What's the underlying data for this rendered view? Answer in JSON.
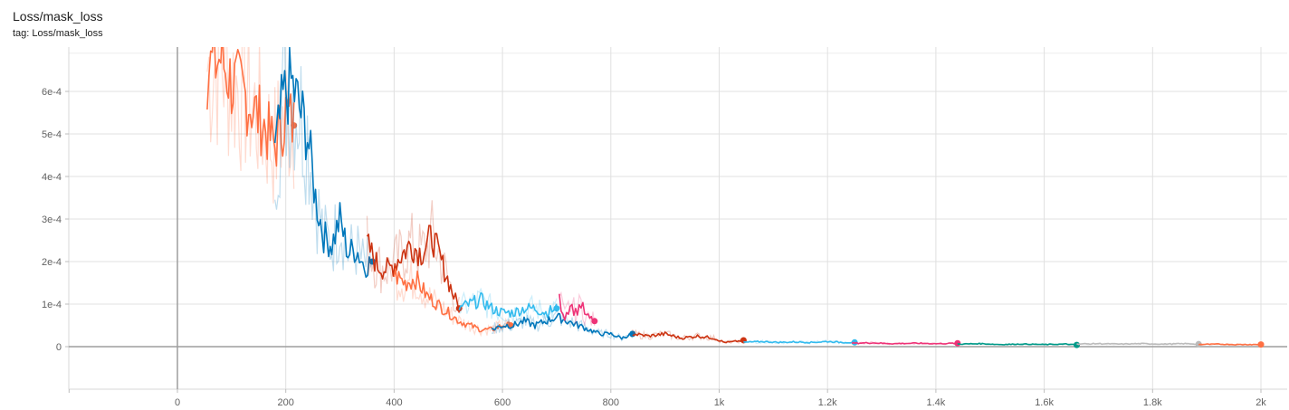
{
  "card": {
    "title": "Loss/mask_loss",
    "tag_line": "tag: Loss/mask_loss"
  },
  "chart_data": {
    "type": "line",
    "title": "Loss/mask_loss",
    "xlabel": "",
    "ylabel": "",
    "xlim": [
      -200,
      2050
    ],
    "ylim": [
      -0.0001,
      0.00069
    ],
    "x_ticks": [
      {
        "value": 0,
        "label": "0"
      },
      {
        "value": 200,
        "label": "200"
      },
      {
        "value": 400,
        "label": "400"
      },
      {
        "value": 600,
        "label": "600"
      },
      {
        "value": 800,
        "label": "800"
      },
      {
        "value": 1000,
        "label": "1k"
      },
      {
        "value": 1200,
        "label": "1.2k"
      },
      {
        "value": 1400,
        "label": "1.4k"
      },
      {
        "value": 1600,
        "label": "1.6k"
      },
      {
        "value": 1800,
        "label": "1.8k"
      },
      {
        "value": 2000,
        "label": "2k"
      }
    ],
    "y_ticks": [
      {
        "value": 0,
        "label": "0"
      },
      {
        "value": 0.0001,
        "label": "1e-4"
      },
      {
        "value": 0.0002,
        "label": "2e-4"
      },
      {
        "value": 0.0003,
        "label": "3e-4"
      },
      {
        "value": 0.0004,
        "label": "4e-4"
      },
      {
        "value": 0.0005,
        "label": "5e-4"
      },
      {
        "value": 0.0006,
        "label": "6e-4"
      }
    ],
    "grid": true,
    "legend": "none",
    "series": [
      {
        "color": "#ff7043",
        "x": [
          55,
          80,
          100,
          120,
          140,
          160,
          180,
          200,
          215
        ],
        "y": [
          0.00065,
          0.00068,
          0.00062,
          0.0006,
          0.00056,
          0.00052,
          0.00047,
          0.00055,
          0.00052
        ]
      },
      {
        "color": "#0077bb",
        "x": [
          180,
          195,
          210,
          225,
          240,
          255,
          270,
          285,
          300,
          315,
          330,
          345,
          360
        ],
        "y": [
          0.00045,
          0.00058,
          0.00062,
          0.00056,
          0.0005,
          0.00035,
          0.00026,
          0.00024,
          0.0003,
          0.00022,
          0.00023,
          0.00019,
          0.0002
        ]
      },
      {
        "color": "#cc3311",
        "x": [
          350,
          370,
          390,
          410,
          430,
          450,
          470,
          490,
          510,
          520
        ],
        "y": [
          0.00024,
          0.00019,
          0.00018,
          0.00021,
          0.00024,
          0.00022,
          0.00026,
          0.00019,
          0.00012,
          9e-05
        ]
      },
      {
        "color": "#ff7043",
        "x": [
          400,
          420,
          440,
          460,
          480,
          500,
          520,
          540,
          560,
          580,
          600,
          615
        ],
        "y": [
          0.00017,
          0.00015,
          0.00016,
          0.00012,
          0.0001,
          8e-05,
          6e-05,
          5e-05,
          4e-05,
          4e-05,
          5e-05,
          5e-05
        ]
      },
      {
        "color": "#33bbee",
        "x": [
          520,
          540,
          560,
          580,
          600,
          620,
          640,
          660,
          680,
          700
        ],
        "y": [
          9e-05,
          0.0001,
          0.00011,
          9e-05,
          8e-05,
          8e-05,
          9e-05,
          9e-05,
          8e-05,
          9e-05
        ]
      },
      {
        "color": "#0077bb",
        "x": [
          580,
          600,
          620,
          640,
          660,
          680,
          700,
          720,
          740,
          760,
          780,
          800,
          820,
          840
        ],
        "y": [
          4e-05,
          5e-05,
          5e-05,
          6e-05,
          5e-05,
          6e-05,
          7e-05,
          6e-05,
          5e-05,
          4e-05,
          3e-05,
          3e-05,
          2e-05,
          3e-05
        ]
      },
      {
        "color": "#ee3377",
        "x": [
          705,
          715,
          725,
          735,
          745,
          755,
          770
        ],
        "y": [
          0.00011,
          7e-05,
          0.0001,
          8e-05,
          0.0001,
          7e-05,
          6e-05
        ]
      },
      {
        "color": "#cc3311",
        "x": [
          840,
          870,
          900,
          930,
          960,
          990,
          1010,
          1030,
          1045
        ],
        "y": [
          3e-05,
          2.5e-05,
          3e-05,
          2e-05,
          2.5e-05,
          2e-05,
          1e-05,
          1.2e-05,
          1.5e-05
        ]
      },
      {
        "color": "#33bbee",
        "x": [
          1045,
          1080,
          1110,
          1140,
          1170,
          1200,
          1230,
          1250
        ],
        "y": [
          1e-05,
          1.2e-05,
          1e-05,
          1.1e-05,
          1e-05,
          1.2e-05,
          1e-05,
          1e-05
        ]
      },
      {
        "color": "#ee3377",
        "x": [
          1245,
          1280,
          1320,
          1360,
          1400,
          1440
        ],
        "y": [
          8e-06,
          9e-06,
          7e-06,
          8e-06,
          7e-06,
          8e-06
        ]
      },
      {
        "color": "#009988",
        "x": [
          1440,
          1480,
          1520,
          1560,
          1600,
          1640,
          1660
        ],
        "y": [
          6e-06,
          7e-06,
          5e-06,
          6e-06,
          5e-06,
          6e-06,
          4e-06
        ]
      },
      {
        "color": "#bbbbbb",
        "x": [
          1660,
          1700,
          1740,
          1780,
          1820,
          1860,
          1885
        ],
        "y": [
          6e-06,
          7e-06,
          6e-06,
          7e-06,
          6e-06,
          7e-06,
          6e-06
        ]
      },
      {
        "color": "#ff7043",
        "x": [
          1885,
          1920,
          1950,
          1980,
          2000
        ],
        "y": [
          5e-06,
          6e-06,
          5e-06,
          5e-06,
          5e-06
        ]
      }
    ]
  }
}
